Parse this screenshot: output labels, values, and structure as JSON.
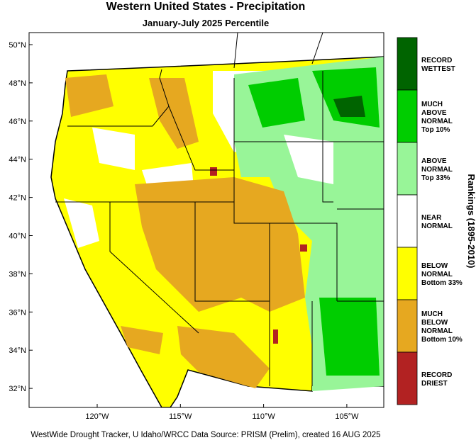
{
  "header": {
    "title": "Western United States - Precipitation",
    "subtitle": "January-July 2025 Percentile"
  },
  "map": {
    "lat_labels": [
      "50°N",
      "48°N",
      "46°N",
      "44°N",
      "42°N",
      "40°N",
      "38°N",
      "36°N",
      "34°N",
      "32°N"
    ],
    "lon_labels": [
      "120°W",
      "115°W",
      "110°W",
      "105°W"
    ]
  },
  "legend": {
    "title": "Rankings (1895-2010)",
    "items": [
      {
        "color": "#006400",
        "lines": [
          "RECORD",
          "WETTEST"
        ]
      },
      {
        "color": "#00cd00",
        "lines": [
          "MUCH",
          "ABOVE",
          "NORMAL",
          "Top 10%"
        ]
      },
      {
        "color": "#98f598",
        "lines": [
          "ABOVE",
          "NORMAL",
          "Top 33%"
        ]
      },
      {
        "color": "#ffffff",
        "lines": [
          "NEAR",
          "NORMAL"
        ]
      },
      {
        "color": "#ffff00",
        "lines": [
          "BELOW",
          "NORMAL",
          "Bottom 33%"
        ]
      },
      {
        "color": "#e6a820",
        "lines": [
          "MUCH",
          "BELOW",
          "NORMAL",
          "Bottom 10%"
        ]
      },
      {
        "color": "#b22222",
        "lines": [
          "RECORD",
          "DRIEST"
        ]
      }
    ]
  },
  "footer": "WestWide Drought Tracker, U Idaho/WRCC Data Source: PRISM (Prelim), created 16 AUG 2025"
}
